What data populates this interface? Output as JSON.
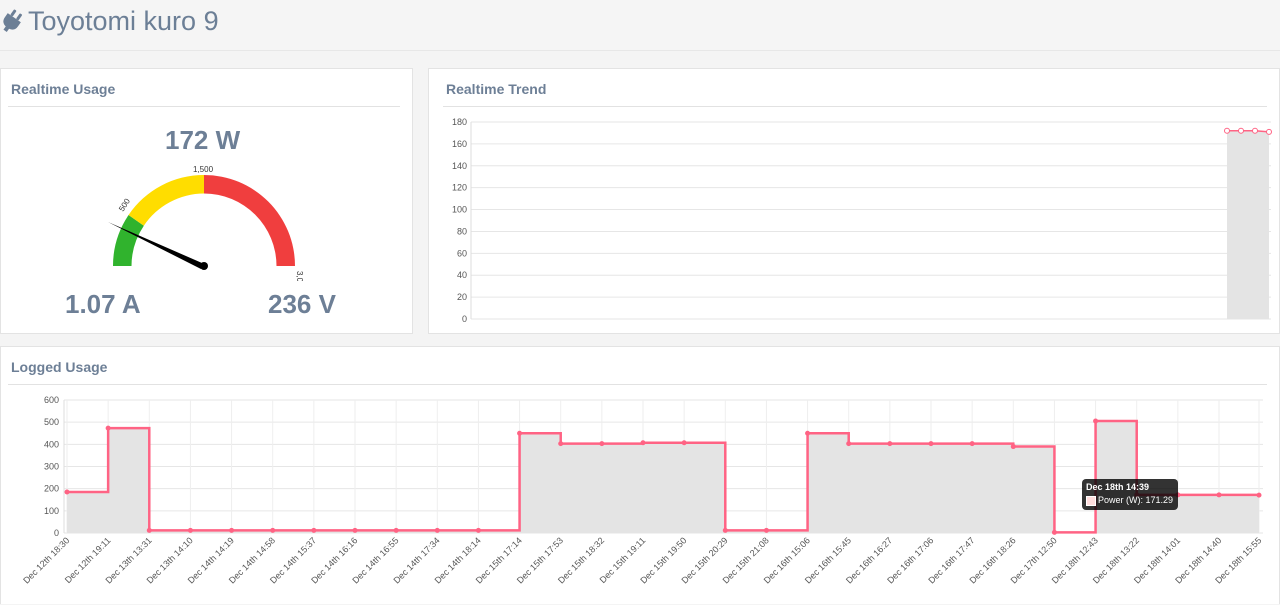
{
  "app": {
    "title": "Toyotomi kuro 9",
    "icon": "plug-icon"
  },
  "colors": {
    "accent": "#ff6384",
    "gauge_green": "#30b32d",
    "gauge_yellow": "#ffdd00",
    "gauge_red": "#f03e3e",
    "fill": "#e4e4e4"
  },
  "realtime": {
    "title": "Realtime Usage",
    "power": "172 W",
    "current": "1.07 A",
    "voltage": "236 V",
    "gauge_labels": [
      "500",
      "1,500",
      "3,000"
    ],
    "gauge_value": 172,
    "gauge_max": 3000
  },
  "trend": {
    "title": "Realtime Trend",
    "y_ticks": [
      "180",
      "160",
      "140",
      "120",
      "100",
      "80",
      "60",
      "40",
      "20",
      "0"
    ]
  },
  "logged": {
    "title": "Logged Usage",
    "y_ticks": [
      "600",
      "500",
      "400",
      "300",
      "200",
      "100",
      "0"
    ],
    "x_labels": [
      "Dec 12th 18:30",
      "Dec 12th 19:11",
      "Dec 13th 13:31",
      "Dec 13th 14:10",
      "Dec 14th 14:19",
      "Dec 14th 14:58",
      "Dec 14th 15:37",
      "Dec 14th 16:16",
      "Dec 14th 16:55",
      "Dec 14th 17:34",
      "Dec 14th 18:14",
      "Dec 15th 17:14",
      "Dec 15th 17:53",
      "Dec 15th 18:32",
      "Dec 15th 19:11",
      "Dec 15th 19:50",
      "Dec 15th 20:29",
      "Dec 15th 21:08",
      "Dec 16th 15:06",
      "Dec 16th 15:45",
      "Dec 16th 16:27",
      "Dec 16th 17:06",
      "Dec 16th 17:47",
      "Dec 16th 18:26",
      "Dec 17th 12:50",
      "Dec 18th 12:43",
      "Dec 18th 13:22",
      "Dec 18th 14:01",
      "Dec 18th 14:40",
      "Dec 18th 15:55"
    ],
    "tooltip": {
      "title": "Dec 18th 14:39",
      "label": "Power (W): 171.29"
    }
  },
  "chart_data": [
    {
      "type": "line",
      "title": "Realtime Trend",
      "ylim": [
        0,
        180
      ],
      "series": [
        {
          "values": [
            172,
            172,
            172,
            171
          ]
        }
      ]
    },
    {
      "type": "area",
      "title": "Logged Usage",
      "ylim": [
        0,
        600
      ],
      "x": [
        "Dec 12th 18:30",
        "Dec 12th 19:11",
        "Dec 13th 13:31",
        "Dec 13th 14:10",
        "Dec 14th 14:19",
        "Dec 14th 14:58",
        "Dec 14th 15:37",
        "Dec 14th 16:16",
        "Dec 14th 16:55",
        "Dec 14th 17:34",
        "Dec 14th 18:14",
        "Dec 15th 17:14",
        "Dec 15th 17:53",
        "Dec 15th 18:32",
        "Dec 15th 19:11",
        "Dec 15th 19:50",
        "Dec 15th 20:29",
        "Dec 15th 21:08",
        "Dec 16th 15:06",
        "Dec 16th 15:45",
        "Dec 16th 16:27",
        "Dec 16th 17:06",
        "Dec 16th 17:47",
        "Dec 16th 18:26",
        "Dec 17th 12:50",
        "Dec 18th 12:43",
        "Dec 18th 13:22",
        "Dec 18th 14:01",
        "Dec 18th 14:40",
        "Dec 18th 15:55"
      ],
      "series": [
        {
          "name": "Power (W)",
          "values": [
            185,
            473,
            12,
            12,
            12,
            12,
            12,
            12,
            12,
            12,
            12,
            450,
            403,
            403,
            407,
            407,
            12,
            12,
            450,
            403,
            403,
            403,
            403,
            390,
            3,
            505,
            172,
            172,
            172,
            171
          ]
        }
      ]
    }
  ]
}
